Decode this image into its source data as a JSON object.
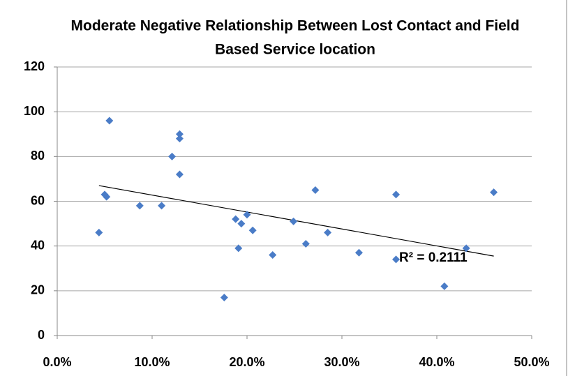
{
  "chart_data": {
    "type": "scatter",
    "title": [
      "Moderate Negative Relationship Between Lost Contact and Field",
      "Based Service location"
    ],
    "x": [
      4.4,
      5.0,
      5.2,
      5.5,
      8.7,
      11.0,
      12.1,
      12.9,
      12.9,
      12.9,
      17.6,
      18.8,
      19.1,
      19.4,
      20.0,
      20.6,
      22.7,
      24.9,
      26.2,
      27.2,
      28.5,
      31.8,
      35.7,
      35.7,
      40.8,
      43.1,
      46.0
    ],
    "values": [
      46,
      63,
      62,
      96,
      58,
      58,
      80,
      90,
      88,
      72,
      17,
      52,
      39,
      50,
      54,
      47,
      36,
      51,
      41,
      65,
      46,
      37,
      63,
      34,
      22,
      39,
      64
    ],
    "color": "#4a7cc7",
    "trendline": {
      "x": [
        4.4,
        46.0
      ],
      "values": [
        67,
        35.5
      ],
      "color": "#000000"
    },
    "annotation": "R² = 0.2111",
    "xlim": [
      0,
      50
    ],
    "xticks": [
      {
        "value": 0,
        "label": "0.0%"
      },
      {
        "value": 10,
        "label": "10.0%"
      },
      {
        "value": 20,
        "label": "20.0%"
      },
      {
        "value": 30,
        "label": "30.0%"
      },
      {
        "value": 40,
        "label": "40.0%"
      },
      {
        "value": 50,
        "label": "50.0%"
      }
    ],
    "ylim": [
      0,
      120
    ],
    "yticks": [
      0,
      20,
      40,
      60,
      80,
      100,
      120
    ],
    "grid": true
  }
}
